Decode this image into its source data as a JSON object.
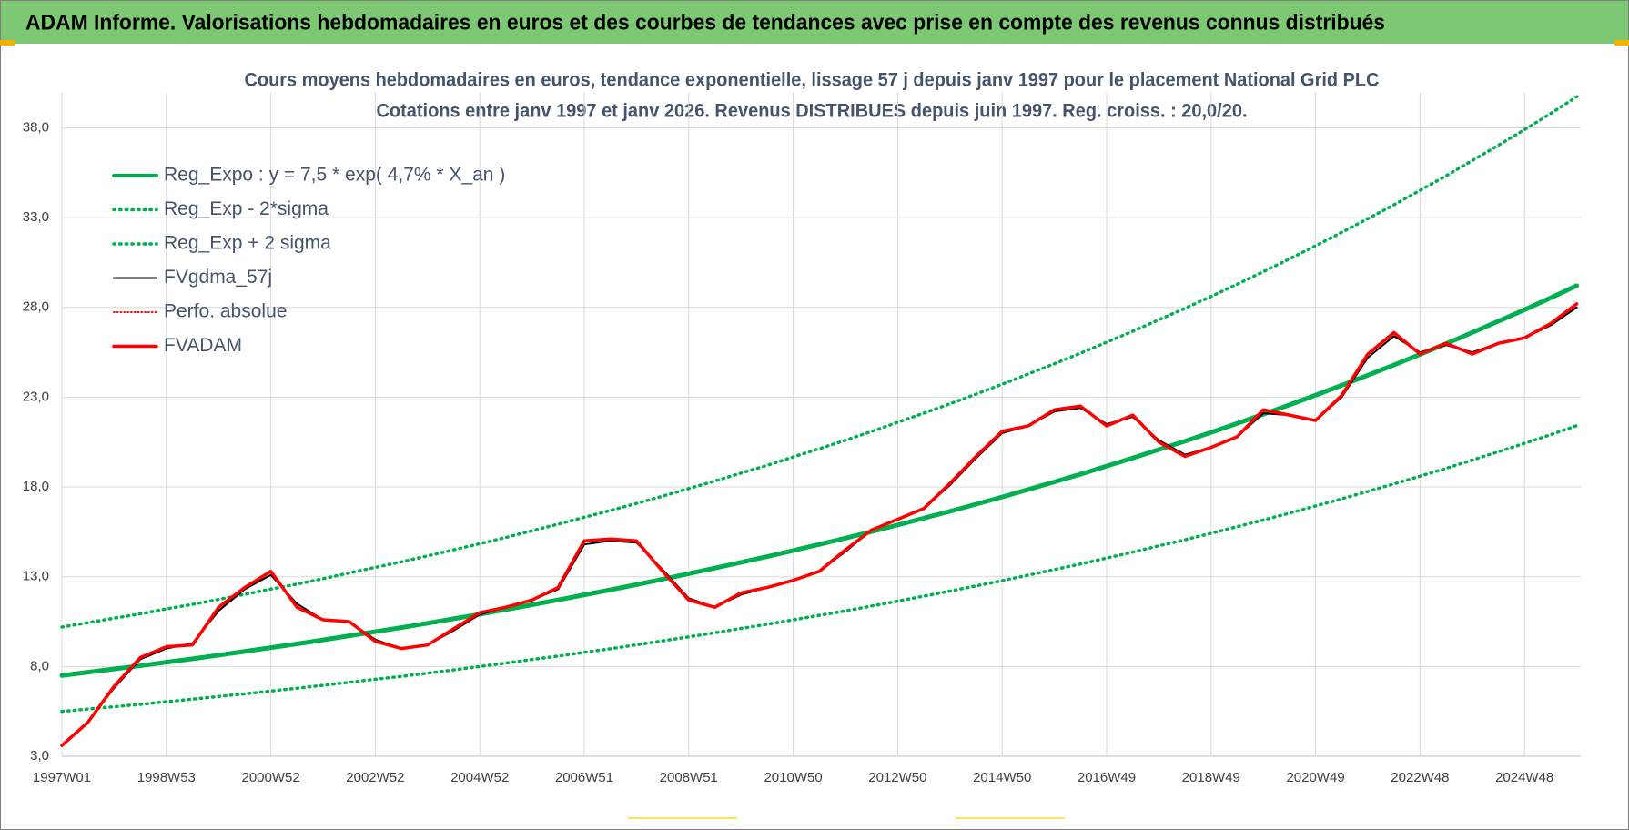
{
  "chart_data": {
    "type": "line",
    "header": "ADAM Informe. Valorisations hebdomadaires en euros et des courbes de tendances avec prise en compte des revenus connus distribués",
    "title": "Cours moyens hebdomadaires en euros, tendance exponentielle, lissage 57 j depuis janv 1997 pour le placement National Grid PLC",
    "subtitle": "Cotations entre janv 1997 et janv 2026. Revenus DISTRIBUES depuis juin 1997. Reg. croiss. : 20,0/20.",
    "x": [
      0,
      26,
      52,
      78,
      104,
      130,
      156,
      182,
      208,
      234,
      260,
      286,
      312,
      338,
      364,
      390,
      416,
      442,
      468,
      494,
      520,
      546,
      572,
      598,
      624,
      650,
      676,
      702,
      728,
      754,
      780,
      806,
      832,
      858,
      884,
      910,
      936,
      962,
      988,
      1014,
      1040,
      1066,
      1092,
      1118,
      1144,
      1170,
      1196,
      1222,
      1248,
      1274,
      1300,
      1326,
      1352,
      1378,
      1404,
      1430,
      1456,
      1482,
      1508
    ],
    "xlim": [
      0,
      1512
    ],
    "xticks": [
      {
        "value": 0,
        "label": "1997W01"
      },
      {
        "value": 104,
        "label": "1998W53"
      },
      {
        "value": 208,
        "label": "2000W52"
      },
      {
        "value": 312,
        "label": "2002W52"
      },
      {
        "value": 416,
        "label": "2004W52"
      },
      {
        "value": 520,
        "label": "2006W51"
      },
      {
        "value": 624,
        "label": "2008W51"
      },
      {
        "value": 728,
        "label": "2010W50"
      },
      {
        "value": 832,
        "label": "2012W50"
      },
      {
        "value": 936,
        "label": "2014W50"
      },
      {
        "value": 1040,
        "label": "2016W49"
      },
      {
        "value": 1144,
        "label": "2018W49"
      },
      {
        "value": 1248,
        "label": "2020W49"
      },
      {
        "value": 1352,
        "label": "2022W48"
      },
      {
        "value": 1456,
        "label": "2024W48"
      }
    ],
    "ylim": [
      3,
      40
    ],
    "yticks": [
      {
        "value": 3,
        "label": "3,0"
      },
      {
        "value": 8,
        "label": "8,0"
      },
      {
        "value": 13,
        "label": "13,0"
      },
      {
        "value": 18,
        "label": "18,0"
      },
      {
        "value": 23,
        "label": "23,0"
      },
      {
        "value": 28,
        "label": "28,0"
      },
      {
        "value": 33,
        "label": "33,0"
      },
      {
        "value": 38,
        "label": "38,0"
      }
    ],
    "grid": true,
    "legend": "upper left",
    "series": [
      {
        "name": "Reg_Expo : y = 7,5 * exp( 4,7% *  X_an )",
        "color": "#00b050",
        "width": 5,
        "dash": "solid",
        "values": [
          7.5,
          7.68,
          7.86,
          8.04,
          8.24,
          8.43,
          8.63,
          8.84,
          9.05,
          9.26,
          9.48,
          9.71,
          9.94,
          10.17,
          10.41,
          10.66,
          10.91,
          11.17,
          11.44,
          11.71,
          11.99,
          12.27,
          12.56,
          12.86,
          13.17,
          13.48,
          13.8,
          14.12,
          14.46,
          14.8,
          15.15,
          15.51,
          15.88,
          16.26,
          16.64,
          17.04,
          17.44,
          17.86,
          18.28,
          18.71,
          19.16,
          19.61,
          20.08,
          20.55,
          21.04,
          21.54,
          22.05,
          22.57,
          23.11,
          23.66,
          24.22,
          24.79,
          25.38,
          25.98,
          26.6,
          27.23,
          27.87,
          28.53,
          29.21
        ]
      },
      {
        "name": "Reg_Exp - 2*sigma",
        "color": "#00b050",
        "width": 3.5,
        "dash": "dotted",
        "values": [
          5.5,
          5.63,
          5.76,
          5.89,
          6.04,
          6.18,
          6.33,
          6.48,
          6.63,
          6.79,
          6.95,
          7.12,
          7.29,
          7.45,
          7.63,
          7.81,
          8.0,
          8.19,
          8.39,
          8.58,
          8.79,
          8.99,
          9.21,
          9.43,
          9.65,
          9.88,
          10.12,
          10.35,
          10.6,
          10.85,
          11.1,
          11.37,
          11.64,
          11.92,
          12.2,
          12.49,
          12.78,
          13.09,
          13.4,
          13.71,
          14.04,
          14.37,
          14.72,
          15.06,
          15.42,
          15.79,
          16.16,
          16.54,
          16.94,
          17.34,
          17.75,
          18.17,
          18.6,
          19.04,
          19.5,
          19.96,
          20.43,
          20.91,
          21.41
        ]
      },
      {
        "name": "Reg_Exp + 2 sigma",
        "color": "#00b050",
        "width": 3.5,
        "dash": "dotted",
        "values": [
          10.2,
          10.44,
          10.69,
          10.93,
          11.21,
          11.46,
          11.74,
          12.02,
          12.31,
          12.59,
          12.89,
          13.21,
          13.52,
          13.83,
          14.16,
          14.5,
          14.84,
          15.19,
          15.56,
          15.93,
          16.31,
          16.69,
          17.08,
          17.49,
          17.91,
          18.33,
          18.77,
          19.2,
          19.67,
          20.13,
          20.6,
          21.09,
          21.6,
          22.11,
          22.63,
          23.17,
          23.72,
          24.29,
          24.86,
          25.45,
          26.06,
          26.67,
          27.31,
          27.95,
          28.61,
          29.29,
          29.99,
          30.7,
          31.43,
          32.18,
          32.94,
          33.71,
          34.52,
          35.33,
          36.18,
          37.03,
          37.9,
          38.8,
          39.73
        ]
      },
      {
        "name": "FVgdma_57j",
        "color": "#000000",
        "width": 2,
        "dash": "solid",
        "values": [
          3.6,
          4.9,
          6.8,
          8.4,
          9.0,
          9.3,
          11.1,
          12.3,
          13.1,
          11.5,
          10.6,
          10.5,
          9.5,
          9.0,
          9.2,
          10.0,
          10.9,
          11.3,
          11.7,
          12.3,
          14.8,
          15.0,
          14.9,
          13.4,
          11.8,
          11.3,
          12.0,
          12.4,
          12.8,
          13.3,
          14.4,
          15.6,
          16.2,
          16.8,
          18.1,
          19.6,
          21.0,
          21.4,
          22.2,
          22.4,
          21.5,
          21.9,
          20.6,
          19.8,
          20.2,
          20.8,
          22.1,
          22.0,
          21.7,
          23.0,
          25.2,
          26.4,
          25.5,
          25.9,
          25.5,
          26.0,
          26.3,
          27.0,
          28.0
        ]
      },
      {
        "name": "Perfo. absolue",
        "color": "#ff0000",
        "width": 2,
        "dash": "dotted",
        "values": [
          3.6,
          4.9,
          6.9,
          8.5,
          9.1,
          9.2,
          11.3,
          12.4,
          13.3,
          11.3,
          10.6,
          10.5,
          9.4,
          9.0,
          9.2,
          10.1,
          11.0,
          11.3,
          11.7,
          12.4,
          15.0,
          15.1,
          15.0,
          13.3,
          11.7,
          11.3,
          12.1,
          12.4,
          12.8,
          13.3,
          14.5,
          15.6,
          16.2,
          16.8,
          18.2,
          19.7,
          21.1,
          21.4,
          22.3,
          22.5,
          21.4,
          22.0,
          20.5,
          19.7,
          20.2,
          20.8,
          22.3,
          22.0,
          21.7,
          23.1,
          25.4,
          26.6,
          25.4,
          26.0,
          25.4,
          26.0,
          26.3,
          27.1,
          28.2
        ]
      },
      {
        "name": "FVADAM",
        "color": "#ff0000",
        "width": 3.5,
        "dash": "solid",
        "values": [
          3.6,
          4.9,
          6.9,
          8.5,
          9.1,
          9.2,
          11.3,
          12.4,
          13.3,
          11.3,
          10.6,
          10.5,
          9.4,
          9.0,
          9.2,
          10.1,
          11.0,
          11.3,
          11.7,
          12.4,
          15.0,
          15.1,
          15.0,
          13.3,
          11.7,
          11.3,
          12.1,
          12.4,
          12.8,
          13.3,
          14.5,
          15.6,
          16.2,
          16.8,
          18.2,
          19.7,
          21.1,
          21.4,
          22.3,
          22.5,
          21.4,
          22.0,
          20.5,
          19.7,
          20.2,
          20.8,
          22.3,
          22.0,
          21.7,
          23.1,
          25.4,
          26.6,
          25.4,
          26.0,
          25.4,
          26.0,
          26.3,
          27.1,
          28.2
        ]
      }
    ]
  }
}
